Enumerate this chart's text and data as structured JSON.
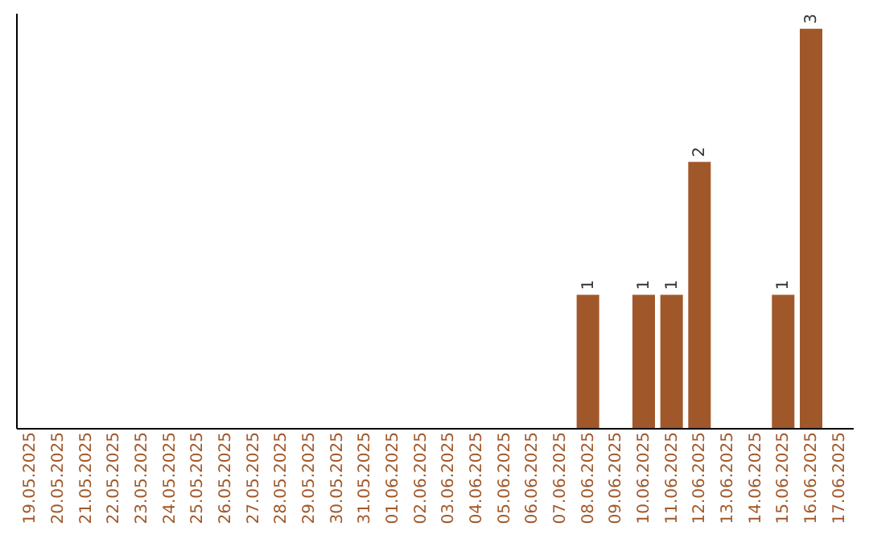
{
  "chart_data": {
    "type": "bar",
    "categories": [
      "19.05.2025",
      "20.05.2025",
      "21.05.2025",
      "22.05.2025",
      "23.05.2025",
      "24.05.2025",
      "25.05.2025",
      "26.05.2025",
      "27.05.2025",
      "28.05.2025",
      "29.05.2025",
      "30.05.2025",
      "31.05.2025",
      "01.06.2025",
      "02.06.2025",
      "03.06.2025",
      "04.06.2025",
      "05.06.2025",
      "06.06.2025",
      "07.06.2025",
      "08.06.2025",
      "09.06.2025",
      "10.06.2025",
      "11.06.2025",
      "12.06.2025",
      "13.06.2025",
      "14.06.2025",
      "15.06.2025",
      "16.06.2025",
      "17.06.2025"
    ],
    "values": [
      null,
      null,
      null,
      null,
      null,
      null,
      null,
      null,
      null,
      null,
      null,
      null,
      null,
      null,
      null,
      null,
      null,
      null,
      null,
      null,
      1,
      null,
      1,
      1,
      2,
      null,
      null,
      1,
      3,
      null
    ],
    "data_labels": true,
    "color": "#a0582a",
    "tick_labels": "x",
    "grid": false
  }
}
